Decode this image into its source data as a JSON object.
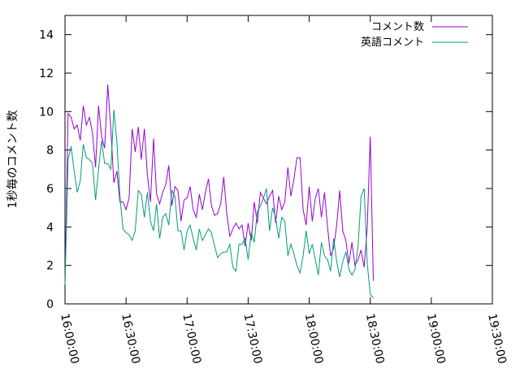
{
  "chart_data": {
    "type": "line",
    "title": "",
    "ylabel": "1秒毎のコメント数",
    "xlabel": "",
    "ylim": [
      0,
      15
    ],
    "xlim": [
      "16:00:00",
      "19:30:00"
    ],
    "x_ticks": [
      "16:00:00",
      "16:30:00",
      "17:00:00",
      "17:30:00",
      "18:00:00",
      "18:30:00",
      "19:00:00",
      "19:30:00"
    ],
    "y_ticks": [
      0,
      2,
      4,
      6,
      8,
      10,
      12,
      14
    ],
    "grid": false,
    "legend_position": "top-right",
    "interval_minutes": 1.5,
    "x_start": "16:00:00",
    "series": [
      {
        "name": "コメント数",
        "color": "#9400d3",
        "values": [
          1.0,
          9.9,
          9.7,
          9.1,
          9.3,
          8.5,
          10.3,
          9.3,
          9.7,
          8.9,
          7.1,
          10.3,
          8.7,
          8.1,
          11.4,
          9.1,
          6.3,
          6.9,
          5.3,
          5.3,
          4.9,
          5.5,
          9.1,
          7.9,
          9.2,
          7.5,
          9.1,
          6.7,
          5.3,
          8.6,
          5.7,
          5.2,
          5.8,
          6.2,
          7.2,
          5.1,
          6.1,
          5.9,
          4.3,
          5.4,
          5.5,
          6.1,
          4.9,
          4.5,
          5.7,
          4.9,
          5.8,
          6.5,
          5.1,
          4.6,
          4.7,
          5.2,
          6.6,
          4.7,
          3.5,
          3.9,
          4.2,
          3.9,
          4.1,
          3.0,
          4.2,
          3.3,
          5.3,
          4.2,
          5.8,
          5.5,
          5.2,
          5.6,
          5.9,
          4.2,
          5.6,
          4.9,
          5.3,
          7.1,
          5.6,
          6.5,
          7.6,
          7.6,
          4.9,
          4.1,
          6.1,
          4.3,
          5.5,
          6.0,
          4.5,
          5.8,
          4.0,
          2.5,
          2.9,
          4.1,
          5.9,
          3.8,
          3.3,
          2.1,
          3.2,
          2.0,
          2.3,
          2.8,
          1.9,
          4.0,
          8.7,
          1.2
        ]
      },
      {
        "name": "英語コメント",
        "color": "#009e73",
        "values": [
          1.0,
          7.5,
          8.2,
          6.9,
          5.8,
          6.4,
          8.3,
          7.6,
          7.5,
          7.3,
          5.4,
          7.0,
          8.5,
          7.3,
          7.3,
          7.0,
          10.1,
          8.4,
          5.6,
          3.9,
          3.7,
          3.6,
          3.3,
          3.8,
          5.9,
          5.7,
          4.5,
          5.8,
          4.3,
          3.8,
          5.2,
          3.4,
          4.5,
          4.7,
          4.1,
          5.9,
          5.6,
          3.8,
          3.8,
          2.8,
          3.8,
          4.1,
          3.4,
          2.8,
          3.9,
          3.3,
          3.6,
          3.9,
          3.7,
          3.0,
          2.4,
          2.6,
          2.7,
          2.7,
          3.1,
          1.9,
          1.7,
          3.1,
          3.1,
          3.4,
          2.3,
          3.7,
          3.2,
          4.8,
          5.1,
          5.5,
          6.0,
          3.8,
          5.0,
          4.5,
          3.4,
          4.5,
          4.3,
          2.5,
          3.1,
          2.6,
          2.0,
          1.6,
          2.5,
          3.8,
          2.6,
          3.1,
          2.3,
          1.5,
          3.2,
          2.5,
          2.3,
          1.7,
          3.4,
          2.2,
          1.4,
          2.2,
          2.7,
          1.8,
          1.5,
          1.8,
          3.0,
          5.6,
          6.0,
          2.1,
          0.5,
          0.3
        ]
      }
    ]
  }
}
